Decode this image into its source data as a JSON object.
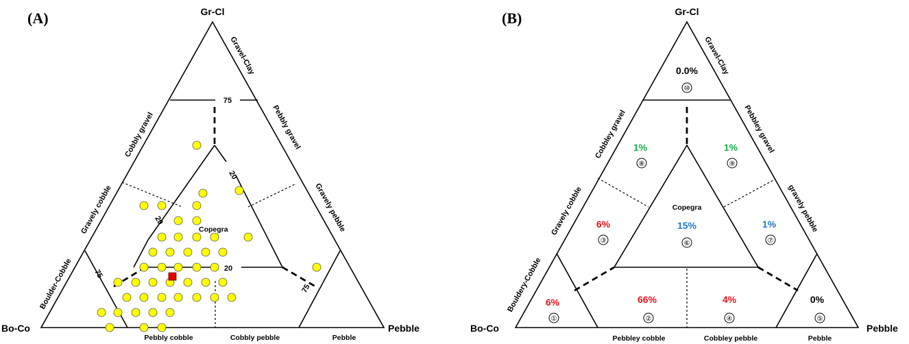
{
  "panelA": {
    "label": "(A)",
    "vertices": {
      "top": "Gr-Cl",
      "left": "Bo-Co",
      "right": "Pebble"
    },
    "edge_labels": {
      "gravel_clay": "Gravel-Clay",
      "cobbly_gravel": "Cobbly gravel",
      "pebbly_gravel": "Pebbly gravel",
      "gravely_cobble": "Gravely cobble",
      "gravely_pebble": "Gravely pebble",
      "boulder_cobble": "Boulder-Cobble",
      "pebbly_cobble": "Pebbly cobble",
      "cobbly_pebble": "Cobbly pebble",
      "pebble": "Pebble"
    },
    "center_label": "Copegra",
    "numbers": {
      "n75_top": "75",
      "n20_right": "20",
      "n20_left": "20",
      "n20_bottom": "20",
      "n75_left": "75",
      "n75_right": "75"
    },
    "samples_note": "yellow circles = sample points; red square = mean"
  },
  "panelB": {
    "label": "(B)",
    "vertices": {
      "top": "Gr-Cl",
      "left": "Bo-Co",
      "right": "Pebble"
    },
    "edge_labels": {
      "gravel_clay": "Gravel-Clay",
      "cobbley_gravel": "Cobbley gravel",
      "pebbley_gravel": "Pebbley gravel",
      "gravely_cobble": "Gravely cobble",
      "gravely_pebble": "gravely pebble",
      "bouldery_cobble": "Bouldery-Cobble",
      "pebbley_cobble": "Pebbley cobble",
      "cobbley_pebble": "Cobbley pebble",
      "pebble": "Pebble"
    },
    "center_label": "Copegra",
    "regions": [
      {
        "num": "①",
        "pct": "6%",
        "color": "#e8141c"
      },
      {
        "num": "②",
        "pct": "66%",
        "color": "#e8141c"
      },
      {
        "num": "③",
        "pct": "6%",
        "color": "#e8141c"
      },
      {
        "num": "④",
        "pct": "4%",
        "color": "#e8141c"
      },
      {
        "num": "⑤",
        "pct": "0%",
        "color": "#000000"
      },
      {
        "num": "⑥",
        "pct": "15%",
        "color": "#1f7ac8"
      },
      {
        "num": "⑦",
        "pct": "1%",
        "color": "#1f7ac8"
      },
      {
        "num": "⑧",
        "pct": "1%",
        "color": "#18b34a"
      },
      {
        "num": "⑨",
        "pct": "1%",
        "color": "#18b34a"
      },
      {
        "num": "⑩",
        "pct": "0.0%",
        "color": "#000000"
      }
    ]
  }
}
